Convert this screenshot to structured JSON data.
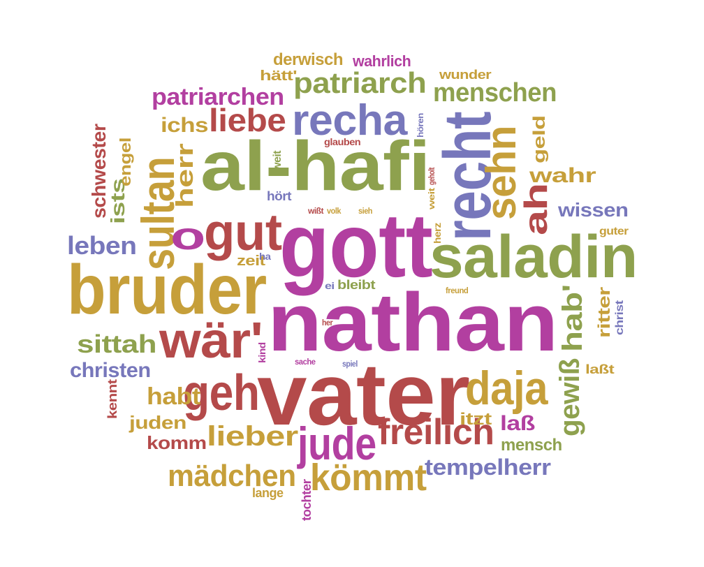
{
  "colors": {
    "green": "#8ea14e",
    "gold": "#c69f3a",
    "magenta": "#b23fa0",
    "red": "#b44a4a",
    "blue": "#7777bb"
  },
  "words": [
    {
      "text": "nathan",
      "color": "magenta"
    },
    {
      "text": "vater",
      "color": "red"
    },
    {
      "text": "gott",
      "color": "magenta"
    },
    {
      "text": "al-hafi",
      "color": "green"
    },
    {
      "text": "bruder",
      "color": "gold"
    },
    {
      "text": "saladin",
      "color": "green"
    },
    {
      "text": "recht",
      "color": "blue"
    },
    {
      "text": "sehn",
      "color": "gold"
    },
    {
      "text": "recha",
      "color": "blue"
    },
    {
      "text": "sultan",
      "color": "gold"
    },
    {
      "text": "gut",
      "color": "red"
    },
    {
      "text": "geh",
      "color": "red"
    },
    {
      "text": "wär'",
      "color": "red"
    },
    {
      "text": "daja",
      "color": "gold"
    },
    {
      "text": "freilich",
      "color": "red"
    },
    {
      "text": "kömmt",
      "color": "gold"
    },
    {
      "text": "jude",
      "color": "magenta"
    },
    {
      "text": "patriarch",
      "color": "green"
    },
    {
      "text": "menschen",
      "color": "green"
    },
    {
      "text": "liebe",
      "color": "red"
    },
    {
      "text": "patriarchen",
      "color": "magenta"
    },
    {
      "text": "lieber",
      "color": "gold"
    },
    {
      "text": "mädchen",
      "color": "gold"
    },
    {
      "text": "tempelherr",
      "color": "blue"
    },
    {
      "text": "o",
      "color": "magenta"
    },
    {
      "text": "ah",
      "color": "red"
    },
    {
      "text": "hab'",
      "color": "green"
    },
    {
      "text": "gewiß",
      "color": "green"
    },
    {
      "text": "sittah",
      "color": "green"
    },
    {
      "text": "habt",
      "color": "gold"
    },
    {
      "text": "leben",
      "color": "blue"
    },
    {
      "text": "herr",
      "color": "gold"
    },
    {
      "text": "ichs",
      "color": "gold"
    },
    {
      "text": "wahr",
      "color": "gold"
    },
    {
      "text": "wissen",
      "color": "blue"
    },
    {
      "text": "christen",
      "color": "blue"
    },
    {
      "text": "schwester",
      "color": "red"
    },
    {
      "text": "ists",
      "color": "green"
    },
    {
      "text": "engel",
      "color": "gold"
    },
    {
      "text": "geld",
      "color": "gold"
    },
    {
      "text": "ritter",
      "color": "gold"
    },
    {
      "text": "laß",
      "color": "magenta"
    },
    {
      "text": "komm",
      "color": "red"
    },
    {
      "text": "juden",
      "color": "gold"
    },
    {
      "text": "mensch",
      "color": "green"
    },
    {
      "text": "itzt",
      "color": "gold"
    },
    {
      "text": "derwisch",
      "color": "gold"
    },
    {
      "text": "wahrlich",
      "color": "magenta"
    },
    {
      "text": "hätt'",
      "color": "gold"
    },
    {
      "text": "wunder",
      "color": "gold"
    },
    {
      "text": "zeit",
      "color": "gold"
    },
    {
      "text": "kennt",
      "color": "red"
    },
    {
      "text": "tochter",
      "color": "magenta"
    },
    {
      "text": "lange",
      "color": "gold"
    },
    {
      "text": "bleibt",
      "color": "green"
    },
    {
      "text": "christ",
      "color": "blue"
    },
    {
      "text": "laßt",
      "color": "gold"
    },
    {
      "text": "guter",
      "color": "gold"
    },
    {
      "text": "hört",
      "color": "blue"
    },
    {
      "text": "weit",
      "color": "green"
    },
    {
      "text": "glauben",
      "color": "red"
    },
    {
      "text": "hören",
      "color": "blue"
    },
    {
      "text": "ha",
      "color": "blue"
    },
    {
      "text": "kind",
      "color": "magenta"
    },
    {
      "text": "ei",
      "color": "blue"
    },
    {
      "text": "sache",
      "color": "magenta"
    },
    {
      "text": "spiel",
      "color": "blue"
    },
    {
      "text": "herz",
      "color": "gold"
    },
    {
      "text": "wißt",
      "color": "red"
    },
    {
      "text": "volk",
      "color": "gold"
    },
    {
      "text": "sieh",
      "color": "gold"
    },
    {
      "text": "freund",
      "color": "gold"
    },
    {
      "text": "her",
      "color": "red"
    },
    {
      "text": "geholt",
      "color": "red"
    },
    {
      "text": "weit",
      "color": "gold"
    }
  ]
}
